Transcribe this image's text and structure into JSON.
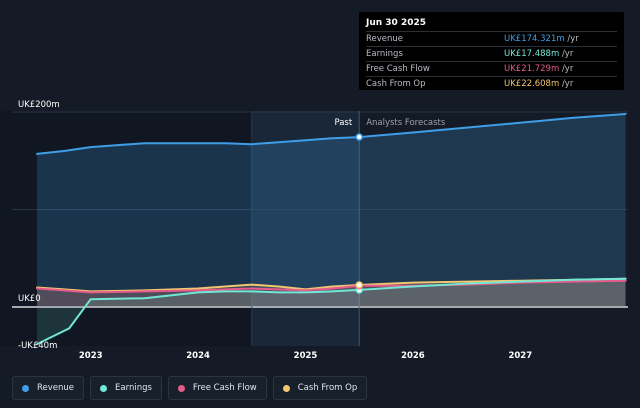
{
  "tooltip": {
    "date": "Jun 30 2025",
    "rows": [
      {
        "label": "Revenue",
        "value": "UK£174.321m",
        "unit": "/yr",
        "color": "#3e9fe8"
      },
      {
        "label": "Earnings",
        "value": "UK£17.488m",
        "unit": "/yr",
        "color": "#71e7d6"
      },
      {
        "label": "Free Cash Flow",
        "value": "UK£21.729m",
        "unit": "/yr",
        "color": "#e45b8c"
      },
      {
        "label": "Cash From Op",
        "value": "UK£22.608m",
        "unit": "/yr",
        "color": "#f2c66e"
      }
    ]
  },
  "legend": [
    {
      "label": "Revenue",
      "color": "#3e9fe8"
    },
    {
      "label": "Earnings",
      "color": "#71e7d6"
    },
    {
      "label": "Free Cash Flow",
      "color": "#e45b8c"
    },
    {
      "label": "Cash From Op",
      "color": "#f2c66e"
    }
  ],
  "chart_data": {
    "type": "line",
    "x_ticks": [
      "2023",
      "2024",
      "2025",
      "2026",
      "2027"
    ],
    "y_tick_labels": [
      "UK£200m",
      "UK£0",
      "-UK£40m"
    ],
    "ylim": [
      -40,
      200
    ],
    "xlim": [
      2022.5,
      2027.98
    ],
    "past_label": "Past",
    "forecast_label": "Analysts Forecasts",
    "past_end_x": 2025.5,
    "shaded_region": [
      2024.5,
      2025.5
    ],
    "series": [
      {
        "name": "Revenue",
        "color": "#3e9fe8",
        "points": [
          [
            2022.5,
            157
          ],
          [
            2022.75,
            160
          ],
          [
            2023.0,
            164
          ],
          [
            2023.5,
            168
          ],
          [
            2024.0,
            168
          ],
          [
            2024.25,
            168
          ],
          [
            2024.5,
            167
          ],
          [
            2024.75,
            169
          ],
          [
            2025.0,
            171
          ],
          [
            2025.25,
            173
          ],
          [
            2025.5,
            174.3
          ],
          [
            2026.0,
            179
          ],
          [
            2026.5,
            184
          ],
          [
            2027.0,
            189
          ],
          [
            2027.5,
            194
          ],
          [
            2027.98,
            198
          ]
        ]
      },
      {
        "name": "Earnings",
        "color": "#71e7d6",
        "points": [
          [
            2022.5,
            -38
          ],
          [
            2022.8,
            -22
          ],
          [
            2023.0,
            8
          ],
          [
            2023.5,
            9
          ],
          [
            2024.0,
            15
          ],
          [
            2024.25,
            16
          ],
          [
            2024.5,
            16
          ],
          [
            2024.75,
            15
          ],
          [
            2025.0,
            15
          ],
          [
            2025.25,
            16
          ],
          [
            2025.5,
            17.5
          ],
          [
            2026.0,
            21
          ],
          [
            2026.5,
            24
          ],
          [
            2027.0,
            26
          ],
          [
            2027.5,
            28
          ],
          [
            2027.98,
            29
          ]
        ]
      },
      {
        "name": "Free Cash Flow",
        "color": "#e45b8c",
        "points": [
          [
            2022.5,
            19
          ],
          [
            2022.75,
            17
          ],
          [
            2023.0,
            15
          ],
          [
            2023.5,
            16
          ],
          [
            2024.0,
            17
          ],
          [
            2024.25,
            18
          ],
          [
            2024.5,
            19
          ],
          [
            2024.75,
            18
          ],
          [
            2025.0,
            17
          ],
          [
            2025.25,
            19
          ],
          [
            2025.5,
            21.7
          ],
          [
            2026.0,
            22
          ],
          [
            2026.5,
            23
          ],
          [
            2027.0,
            25
          ],
          [
            2027.5,
            26
          ],
          [
            2027.98,
            27
          ]
        ]
      },
      {
        "name": "Cash From Op",
        "color": "#f2c66e",
        "points": [
          [
            2022.5,
            20
          ],
          [
            2022.75,
            18
          ],
          [
            2023.0,
            16
          ],
          [
            2023.5,
            17
          ],
          [
            2024.0,
            19
          ],
          [
            2024.25,
            21
          ],
          [
            2024.5,
            23
          ],
          [
            2024.75,
            21
          ],
          [
            2025.0,
            18
          ],
          [
            2025.25,
            21
          ],
          [
            2025.5,
            22.6
          ],
          [
            2026.0,
            25
          ],
          [
            2026.5,
            26
          ],
          [
            2027.0,
            27
          ],
          [
            2027.5,
            28
          ],
          [
            2027.98,
            29
          ]
        ]
      }
    ]
  }
}
